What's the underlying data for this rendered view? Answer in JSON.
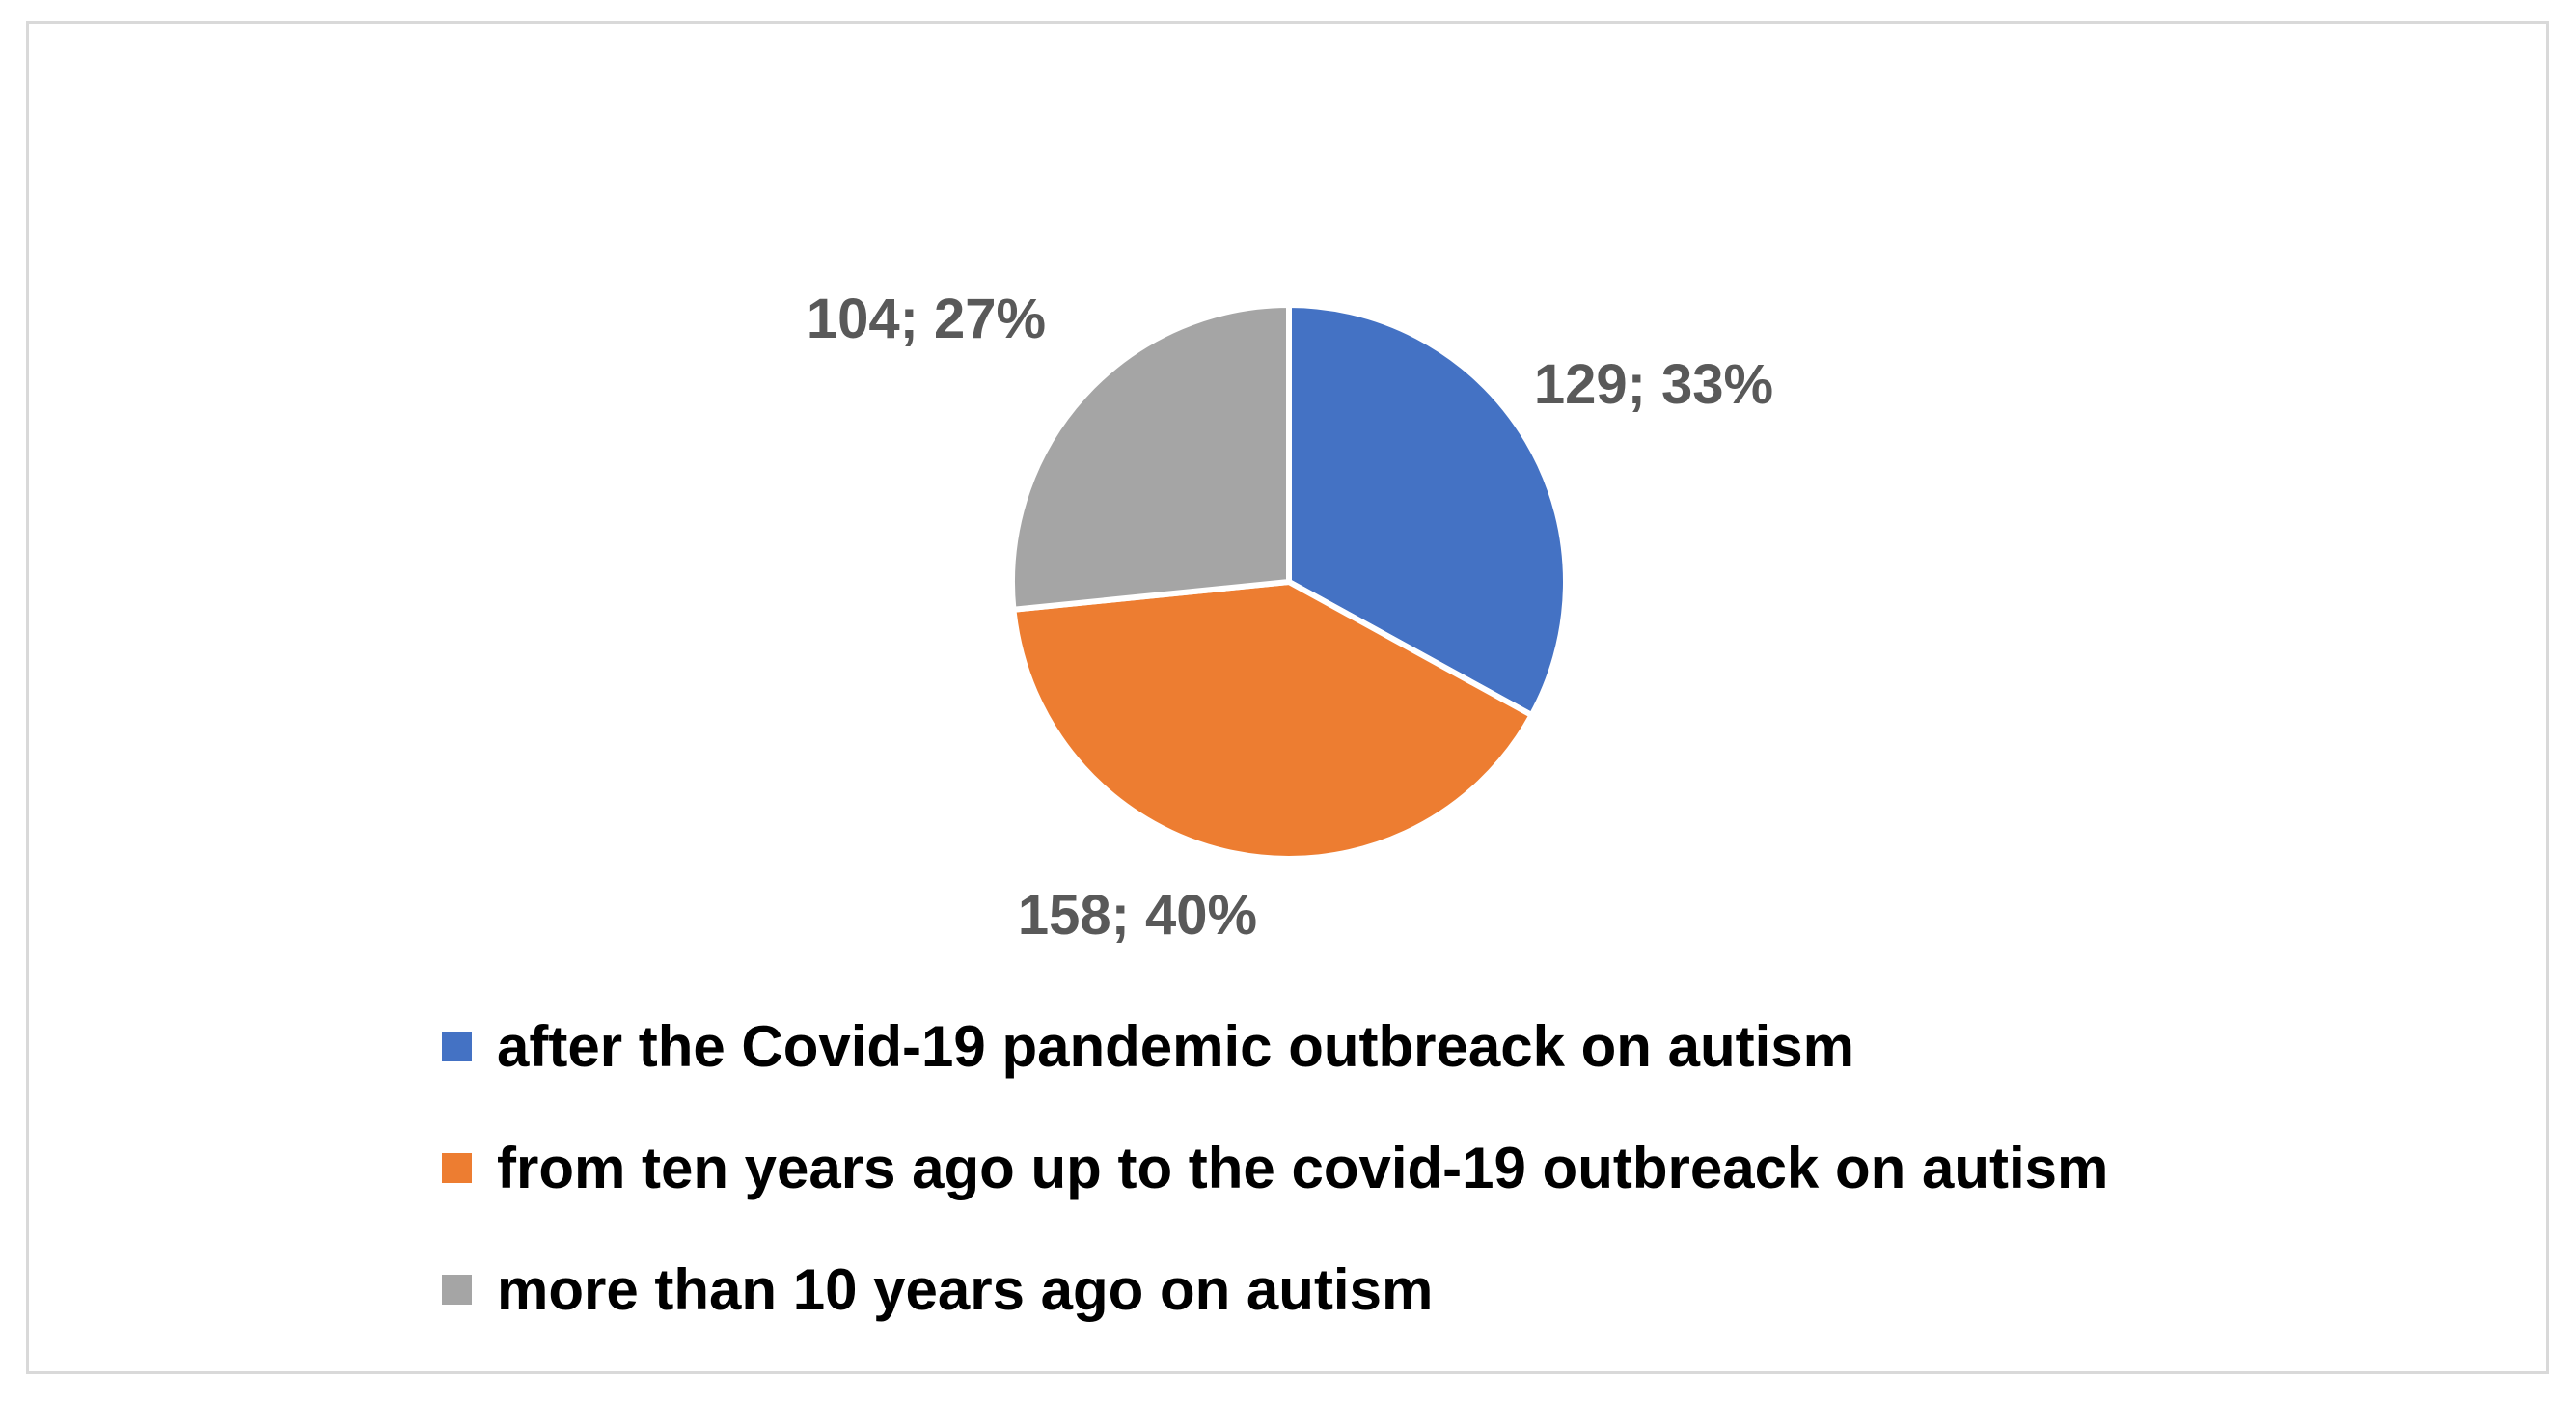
{
  "chart_data": {
    "type": "pie",
    "title": "",
    "categories": [
      "after the Covid-19 pandemic outbreack on autism",
      "from ten years ago up to the covid-19 outbreack on autism",
      "more than 10 years ago on autism"
    ],
    "values": [
      129,
      158,
      104
    ],
    "percentages": [
      33,
      40,
      27
    ],
    "data_labels": [
      "129; 33%",
      "158; 40%",
      "104; 27%"
    ],
    "colors": [
      "#4472c4",
      "#ed7d31",
      "#a5a5a5"
    ],
    "legend_position": "bottom",
    "start_angle": "12 o'clock, clockwise"
  }
}
